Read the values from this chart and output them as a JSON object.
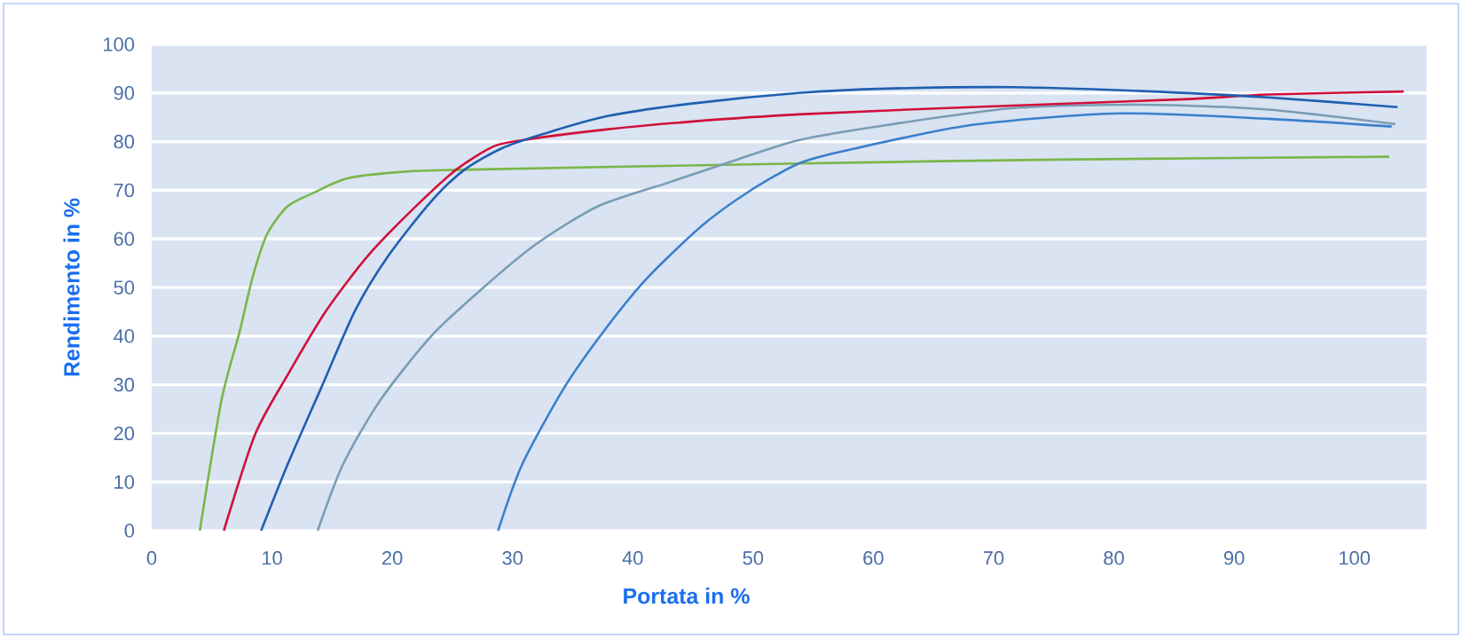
{
  "chart_data": {
    "type": "line",
    "xlabel": "Portata in %",
    "ylabel": "Rendimento in %",
    "xlim": [
      0,
      106
    ],
    "ylim": [
      0,
      100
    ],
    "xticks": [
      0,
      10,
      20,
      30,
      40,
      50,
      60,
      70,
      80,
      90,
      100
    ],
    "yticks": [
      0,
      10,
      20,
      30,
      40,
      50,
      60,
      70,
      80,
      90,
      100
    ],
    "grid": "y",
    "series": [
      {
        "color": "#7ab648",
        "x": [
          4.0,
          5.8,
          7.3,
          8.4,
          9.6,
          11.3,
          13.4,
          16.2,
          20.4,
          25.6,
          53.8,
          75.2,
          102.9
        ],
        "values": [
          0,
          26.8,
          40.8,
          52.2,
          61,
          66.7,
          69.4,
          72.4,
          73.7,
          74.2,
          75.5,
          76.3,
          76.9
        ]
      },
      {
        "color": "#3a80cc",
        "x": [
          28.8,
          30.8,
          34.3,
          37.8,
          41.3,
          45.8,
          49.7,
          53.8,
          57.6,
          68.1,
          80.5,
          92.8,
          103.1
        ],
        "values": [
          0,
          13.6,
          29.4,
          41.7,
          52.2,
          62.8,
          69.8,
          75.5,
          78.1,
          83.4,
          85.8,
          84.7,
          83.1
        ]
      },
      {
        "color": "#7a9cb5",
        "x": [
          13.8,
          15.9,
          19,
          23.2,
          27.4,
          31.9,
          37.1,
          43,
          48.3,
          53.8,
          61.1,
          71.7,
          82.3,
          92.8,
          103.4
        ],
        "values": [
          0,
          13.6,
          26.8,
          39.9,
          49.6,
          58.8,
          66.7,
          71.6,
          76,
          80.3,
          83.4,
          86.9,
          87.6,
          86.6,
          83.6
        ]
      },
      {
        "color": "#d0103a",
        "x": [
          6.0,
          8.6,
          11.3,
          14.5,
          18,
          21.8,
          25.3,
          28.4,
          30.8,
          37.8,
          44.8,
          53.8,
          68.1,
          85.8,
          92.8,
          104.1
        ],
        "values": [
          0,
          19.8,
          32,
          45.2,
          56.6,
          66.3,
          74.2,
          79,
          80.3,
          82.5,
          84.1,
          85.6,
          87.1,
          88.7,
          89.7,
          90.3
        ]
      },
      {
        "color": "#1f5fb0",
        "x": [
          9.1,
          11.3,
          14.1,
          16.9,
          19.7,
          23.2,
          26,
          29.1,
          32.6,
          37.8,
          44.8,
          53.8,
          61.1,
          71.7,
          82.3,
          92.8,
          103.6
        ],
        "values": [
          0,
          13.6,
          29.4,
          45.2,
          56.6,
          67.6,
          74.2,
          78.6,
          81.6,
          85.2,
          87.8,
          90,
          90.9,
          91.2,
          90.4,
          89.1,
          87.1
        ]
      }
    ]
  }
}
